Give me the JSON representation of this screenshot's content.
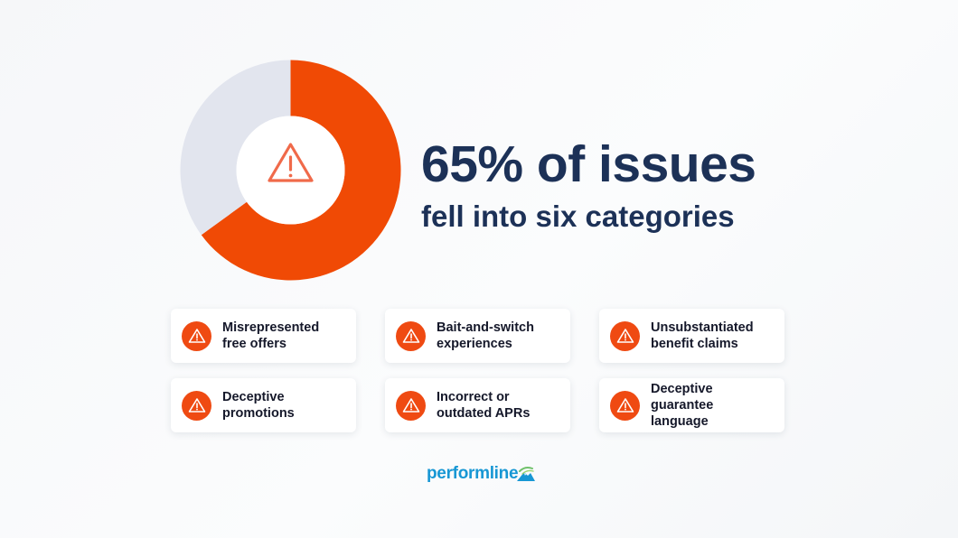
{
  "chart_data": {
    "type": "pie",
    "style": "donut",
    "values": [
      65,
      35
    ],
    "colors": [
      "#f04a05",
      "#e2e5ee"
    ],
    "title": "65% of issues",
    "subtitle": "fell into six categories",
    "center_icon": "warning-triangle-icon"
  },
  "categories": [
    {
      "line1": "Misrepresented",
      "line2": "free offers"
    },
    {
      "line1": "Bait-and-switch",
      "line2": "experiences"
    },
    {
      "line1": "Unsubstantiated",
      "line2": "benefit claims"
    },
    {
      "line1": "Deceptive",
      "line2": "promotions"
    },
    {
      "line1": "Incorrect or",
      "line2": "outdated APRs"
    },
    {
      "line1": "Deceptive guarantee",
      "line2": "language"
    }
  ],
  "brand": {
    "name": "performline",
    "color": "#1797d4",
    "icon": "mountain-logo-icon"
  },
  "colors": {
    "accent": "#ef4a12",
    "heading": "#1c3157",
    "icon_outline": "#f06a4a"
  }
}
